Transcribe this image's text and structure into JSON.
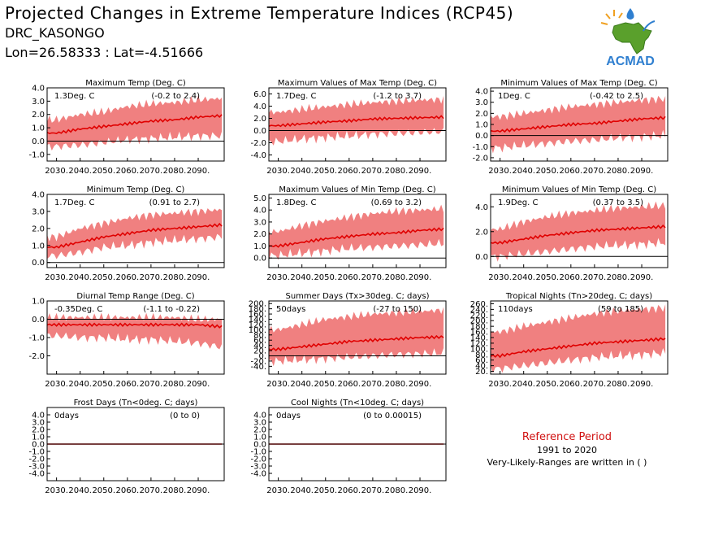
{
  "header": {
    "title": "Projected Changes in Extreme Temperature Indices (RCP45)",
    "station": "DRC_KASONGO",
    "coords": "Lon=26.58333 : Lat=-4.51666"
  },
  "logo": {
    "text": "ACMAD",
    "colors": {
      "africa": "#5aa02c",
      "text": "#2f7fd0",
      "drop": "#2f7fd0",
      "sun": "#f0a020"
    }
  },
  "reference": {
    "title": "Reference Period",
    "years": "1991 to 2020",
    "note": "Very-Likely-Ranges are written in ( )"
  },
  "colors": {
    "band": "#f08080",
    "line": "#e00000",
    "zero": "#000000"
  },
  "chart_data": [
    {
      "type": "area",
      "title": "Maximum Temp (Deg. C)",
      "value": "1.3Deg. C",
      "range": "(-0.2 to 2.4)",
      "x": [
        2030,
        2040,
        2050,
        2060,
        2070,
        2080,
        2090,
        2099
      ],
      "median": [
        0.6,
        0.9,
        1.1,
        1.3,
        1.5,
        1.6,
        1.8,
        1.9
      ],
      "low": [
        -0.4,
        -0.3,
        -0.1,
        0.1,
        0.2,
        0.3,
        0.4,
        0.4
      ],
      "high": [
        1.6,
        2.0,
        2.2,
        2.6,
        2.8,
        2.9,
        3.1,
        3.2
      ],
      "ylim": [
        -1.5,
        4.0
      ],
      "yticks": [
        -1.0,
        0.0,
        1.0,
        2.0,
        3.0,
        4.0
      ],
      "yticklabels": [
        "-1.0",
        "0.0",
        "1.0",
        "2.0",
        "3.0",
        "4.0"
      ],
      "xticklabels": [
        "2030.",
        "2040.",
        "2050.",
        "2060.",
        "2070.",
        "2080.",
        "2090."
      ],
      "zero": 0
    },
    {
      "type": "area",
      "title": "Maximum Values of Max Temp (Deg. C)",
      "value": "1.7Deg. C",
      "range": "(-1.2 to 3.7)",
      "x": [
        2030,
        2040,
        2050,
        2060,
        2070,
        2080,
        2090,
        2099
      ],
      "median": [
        0.8,
        1.1,
        1.4,
        1.6,
        1.9,
        2.0,
        2.1,
        2.2
      ],
      "low": [
        -1.8,
        -1.4,
        -1.1,
        -0.9,
        -0.6,
        -0.5,
        -0.3,
        -0.2
      ],
      "high": [
        3.0,
        3.5,
        3.9,
        4.3,
        4.6,
        4.8,
        5.0,
        5.1
      ],
      "ylim": [
        -5.0,
        7.0
      ],
      "yticks": [
        -4.0,
        -2.0,
        0.0,
        2.0,
        4.0,
        6.0
      ],
      "yticklabels": [
        "-4.0",
        "-2.0",
        "0.0",
        "2.0",
        "4.0",
        "6.0"
      ],
      "xticklabels": [
        "2030.",
        "2040.",
        "2050.",
        "2060.",
        "2070.",
        "2080.",
        "2090."
      ],
      "zero": 0
    },
    {
      "type": "area",
      "title": "Minimum Values of Max Temp (Deg. C)",
      "value": "1Deg. C",
      "range": "(-0.42 to 2.5)",
      "x": [
        2030,
        2040,
        2050,
        2060,
        2070,
        2080,
        2090,
        2099
      ],
      "median": [
        0.4,
        0.6,
        0.8,
        1.0,
        1.1,
        1.3,
        1.5,
        1.6
      ],
      "low": [
        -1.1,
        -0.9,
        -0.7,
        -0.5,
        -0.4,
        -0.2,
        -0.1,
        0.0
      ],
      "high": [
        1.7,
        2.0,
        2.3,
        2.6,
        2.8,
        3.0,
        3.2,
        3.3
      ],
      "ylim": [
        -2.3,
        4.3
      ],
      "yticks": [
        -2.0,
        -1.0,
        0.0,
        1.0,
        2.0,
        3.0,
        4.0
      ],
      "yticklabels": [
        "-2.0",
        "-1.0",
        "0.0",
        "1.0",
        "2.0",
        "3.0",
        "4.0"
      ],
      "xticklabels": [
        "2030.",
        "2040.",
        "2050.",
        "2060.",
        "2070.",
        "2080.",
        "2090."
      ],
      "zero": 0
    },
    {
      "type": "area",
      "title": "Minimum Temp (Deg. C)",
      "value": "1.7Deg. C",
      "range": "(0.91 to 2.7)",
      "x": [
        2030,
        2040,
        2050,
        2060,
        2070,
        2080,
        2090,
        2099
      ],
      "median": [
        0.9,
        1.2,
        1.5,
        1.7,
        1.9,
        2.0,
        2.1,
        2.2
      ],
      "low": [
        0.4,
        0.6,
        0.9,
        1.0,
        1.2,
        1.3,
        1.4,
        1.5
      ],
      "high": [
        1.5,
        2.0,
        2.3,
        2.6,
        2.8,
        2.9,
        3.0,
        3.1
      ],
      "ylim": [
        -0.3,
        4.0
      ],
      "yticks": [
        0.0,
        1.0,
        2.0,
        3.0,
        4.0
      ],
      "yticklabels": [
        "0.0",
        "1.0",
        "2.0",
        "3.0",
        "4.0"
      ],
      "xticklabels": [
        "2030.",
        "2040.",
        "2050.",
        "2060.",
        "2070.",
        "2080.",
        "2090."
      ],
      "zero": 0
    },
    {
      "type": "area",
      "title": "Maximum Values of Min Temp (Deg. C)",
      "value": "1.8Deg. C",
      "range": "(0.69 to 3.2)",
      "x": [
        2030,
        2040,
        2050,
        2060,
        2070,
        2080,
        2090,
        2099
      ],
      "median": [
        1.0,
        1.3,
        1.6,
        1.8,
        2.0,
        2.1,
        2.3,
        2.4
      ],
      "low": [
        0.2,
        0.4,
        0.6,
        0.8,
        0.9,
        1.0,
        1.1,
        1.2
      ],
      "high": [
        2.2,
        2.7,
        3.1,
        3.4,
        3.7,
        3.9,
        4.0,
        4.1
      ],
      "ylim": [
        -0.8,
        5.3
      ],
      "yticks": [
        0.0,
        1.0,
        2.0,
        3.0,
        4.0,
        5.0
      ],
      "yticklabels": [
        "0.0",
        "1.0",
        "2.0",
        "3.0",
        "4.0",
        "5.0"
      ],
      "xticklabels": [
        "2030.",
        "2040.",
        "2050.",
        "2060.",
        "2070.",
        "2080.",
        "2090."
      ],
      "zero": 0
    },
    {
      "type": "area",
      "title": "Minimum Values of Min Temp (Deg. C)",
      "value": "1.9Deg. C",
      "range": "(0.37 to 3.5)",
      "x": [
        2030,
        2040,
        2050,
        2060,
        2070,
        2080,
        2090,
        2099
      ],
      "median": [
        1.1,
        1.4,
        1.7,
        1.9,
        2.1,
        2.2,
        2.3,
        2.4
      ],
      "low": [
        0.0,
        0.2,
        0.4,
        0.6,
        0.8,
        0.9,
        1.0,
        1.1
      ],
      "high": [
        2.2,
        2.8,
        3.2,
        3.5,
        3.7,
        3.9,
        4.0,
        4.1
      ],
      "ylim": [
        -0.9,
        5.0
      ],
      "yticks": [
        0.0,
        2.0,
        4.0
      ],
      "yticklabels": [
        "0.0",
        "2.0",
        "4.0"
      ],
      "xticklabels": [
        "2030.",
        "2040.",
        "2050.",
        "2060.",
        "2070.",
        "2080.",
        "2090."
      ],
      "zero": 0
    },
    {
      "type": "area",
      "title": "Diurnal Temp Range (Deg. C)",
      "value": "-0.35Deg. C",
      "range": "(-1.1 to -0.22)",
      "x": [
        2030,
        2040,
        2050,
        2060,
        2070,
        2080,
        2090,
        2099
      ],
      "median": [
        -0.3,
        -0.3,
        -0.3,
        -0.3,
        -0.3,
        -0.3,
        -0.3,
        -0.4
      ],
      "low": [
        -0.9,
        -1.0,
        -1.0,
        -1.1,
        -1.1,
        -1.2,
        -1.3,
        -1.5
      ],
      "high": [
        0.1,
        0.1,
        0.1,
        0.1,
        0.1,
        0.1,
        0.0,
        0.0
      ],
      "ylim": [
        -3.0,
        1.0
      ],
      "yticks": [
        -2.0,
        -1.0,
        0.0,
        1.0
      ],
      "yticklabels": [
        "-2.0",
        "-1.0",
        "0.0",
        "1.0"
      ],
      "xticklabels": [
        "2030.",
        "2040.",
        "2050.",
        "2060.",
        "2070.",
        "2080.",
        "2090."
      ],
      "zero": 0
    },
    {
      "type": "area",
      "title": "Summer Days (Tx>30deg. C; days)",
      "value": "50days",
      "range": "(-27 to 150)",
      "x": [
        2030,
        2040,
        2050,
        2060,
        2070,
        2080,
        2090,
        2099
      ],
      "median": [
        25,
        35,
        45,
        55,
        60,
        65,
        70,
        72
      ],
      "low": [
        -20,
        -15,
        -10,
        -5,
        0,
        5,
        8,
        10
      ],
      "high": [
        100,
        120,
        140,
        150,
        160,
        165,
        170,
        175
      ],
      "ylim": [
        -70,
        210
      ],
      "yticks": [
        -40,
        0,
        40,
        80,
        120,
        160,
        200
      ],
      "yticklabels": [
        "-40.",
        "0.",
        "40.",
        "80.",
        "120.",
        "160.",
        "200."
      ],
      "yticks_minor": [
        -20,
        20,
        60,
        100,
        140,
        180
      ],
      "yticklabels_minor": [
        "-20.",
        "20.",
        "60.",
        "100.",
        "140.",
        "180."
      ],
      "xticklabels": [
        "2030.",
        "2040.",
        "2050.",
        "2060.",
        "2070.",
        "2080.",
        "2090."
      ],
      "zero": 0
    },
    {
      "type": "area",
      "title": "Tropical Nights (Tn>20deg. C; days)",
      "value": "110days",
      "range": "(59 to 185)",
      "x": [
        2030,
        2040,
        2050,
        2060,
        2070,
        2080,
        2090,
        2099
      ],
      "median": [
        75,
        90,
        100,
        110,
        120,
        125,
        130,
        135
      ],
      "low": [
        30,
        40,
        50,
        60,
        70,
        75,
        80,
        85
      ],
      "high": [
        160,
        180,
        195,
        210,
        225,
        235,
        240,
        245
      ],
      "ylim": [
        10,
        270
      ],
      "yticks": [
        20,
        60,
        100,
        140,
        180,
        220,
        260
      ],
      "yticklabels": [
        "20.",
        "60.",
        "100.",
        "140.",
        "180.",
        "220.",
        "260."
      ],
      "yticks_minor": [
        40,
        80,
        120,
        160,
        200,
        240
      ],
      "yticklabels_minor": [
        "40.",
        "80.",
        "120.",
        "160.",
        "200.",
        "240."
      ],
      "xticklabels": [
        "2030.",
        "2040.",
        "2050.",
        "2060.",
        "2070.",
        "2080.",
        "2090."
      ],
      "zero": null
    },
    {
      "type": "area",
      "title": "Frost Days (Tn<0deg. C; days)",
      "value": "0days",
      "range": "(0 to 0)",
      "x": [
        2030,
        2040,
        2050,
        2060,
        2070,
        2080,
        2090,
        2099
      ],
      "median": [
        0,
        0,
        0,
        0,
        0,
        0,
        0,
        0
      ],
      "low": [
        0,
        0,
        0,
        0,
        0,
        0,
        0,
        0
      ],
      "high": [
        0,
        0,
        0,
        0,
        0,
        0,
        0,
        0
      ],
      "ylim": [
        -5.0,
        5.0
      ],
      "yticks": [
        -4.0,
        -2.0,
        0.0,
        2.0,
        4.0
      ],
      "yticklabels": [
        "-4.0",
        "-2.0",
        "0.0",
        "2.0",
        "4.0"
      ],
      "yticks_minor": [
        -3.0,
        -1.0,
        1.0,
        3.0
      ],
      "yticklabels_minor": [
        "-3.0",
        "-1.0",
        "1.0",
        "3.0"
      ],
      "xticklabels": [
        "2030.",
        "2040.",
        "2050.",
        "2060.",
        "2070.",
        "2080.",
        "2090."
      ],
      "zero": 0
    },
    {
      "type": "area",
      "title": "Cool Nights (Tn<10deg. C; days)",
      "value": "0days",
      "range": "(0 to 0.00015)",
      "x": [
        2030,
        2040,
        2050,
        2060,
        2070,
        2080,
        2090,
        2099
      ],
      "median": [
        0,
        0,
        0,
        0,
        0,
        0,
        0,
        0
      ],
      "low": [
        0,
        0,
        0,
        0,
        0,
        0,
        0,
        0
      ],
      "high": [
        0,
        0,
        0,
        0,
        0,
        0,
        0,
        0
      ],
      "ylim": [
        -5.0,
        5.0
      ],
      "yticks": [
        -4.0,
        -2.0,
        0.0,
        2.0,
        4.0
      ],
      "yticklabels": [
        "-4.0",
        "-2.0",
        "0.0",
        "2.0",
        "4.0"
      ],
      "yticks_minor": [
        -3.0,
        -1.0,
        1.0,
        3.0
      ],
      "yticklabels_minor": [
        "-3.0",
        "-1.0",
        "1.0",
        "3.0"
      ],
      "xticklabels": [
        "2030.",
        "2040.",
        "2050.",
        "2060.",
        "2070.",
        "2080.",
        "2090."
      ],
      "zero": 0
    }
  ]
}
